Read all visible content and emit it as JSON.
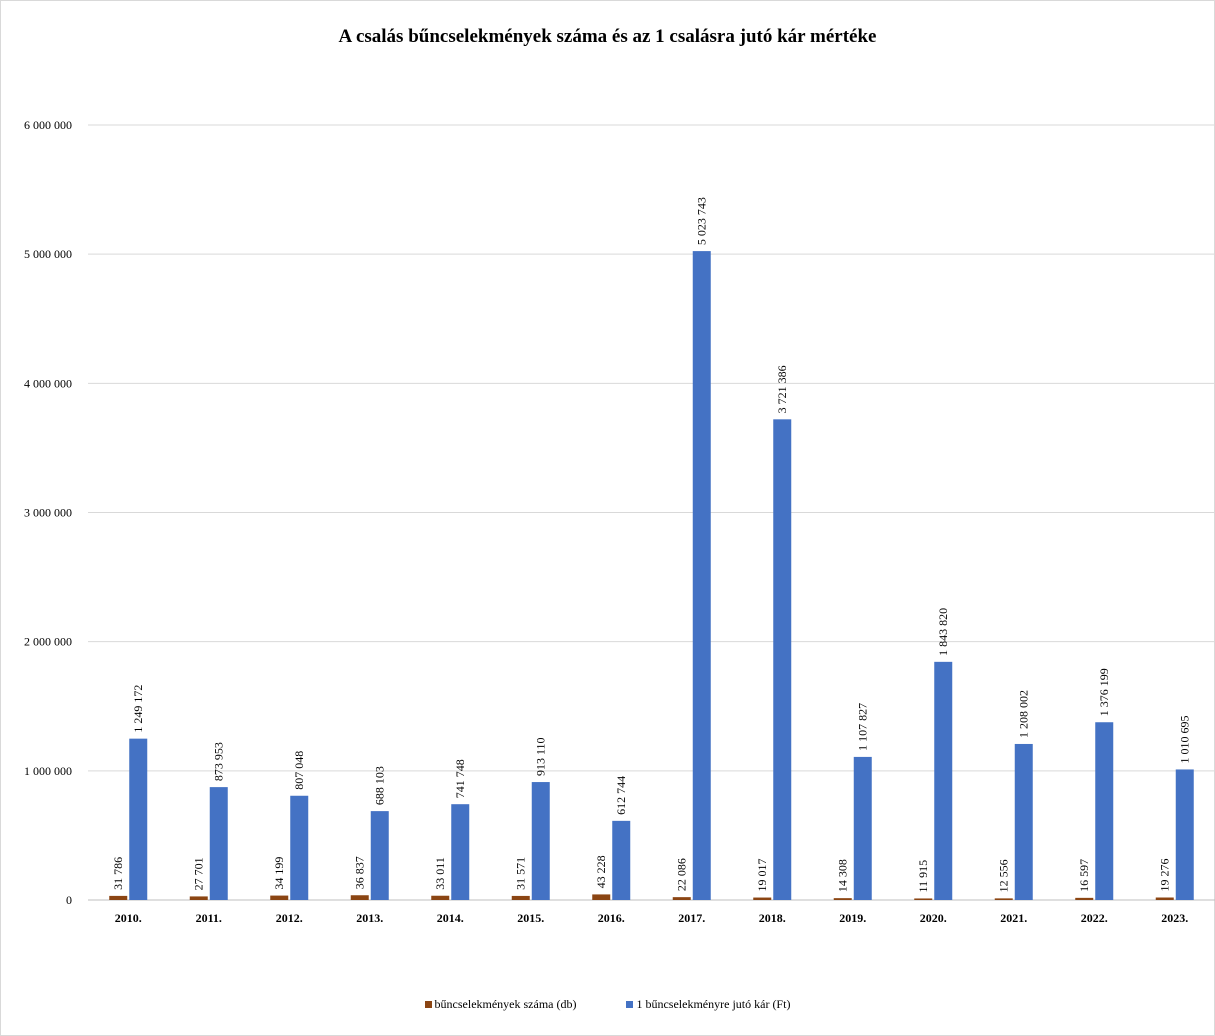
{
  "chart_data": {
    "type": "bar",
    "title": "A csalás bűncselekmények száma és az 1 csalásra jutó kár mértéke",
    "categories": [
      "2010.",
      "2011.",
      "2012.",
      "2013.",
      "2014.",
      "2015.",
      "2016.",
      "2017.",
      "2018.",
      "2019.",
      "2020.",
      "2021.",
      "2022.",
      "2023."
    ],
    "series": [
      {
        "name": "bűncselekmények száma (db)",
        "color": "#8B4513",
        "values": [
          31786,
          27701,
          34199,
          36837,
          33011,
          31571,
          43228,
          22086,
          19017,
          14308,
          11915,
          12556,
          16597,
          19276
        ],
        "labels": [
          "31 786",
          "27 701",
          "34 199",
          "36 837",
          "33 011",
          "31 571",
          "43 228",
          "22 086",
          "19 017",
          "14 308",
          "11 915",
          "12 556",
          "16 597",
          "19 276"
        ]
      },
      {
        "name": "1 bűncselekményre jutó kár (Ft)",
        "color": "#4472C4",
        "values": [
          1249172,
          873953,
          807048,
          688103,
          741748,
          913110,
          612744,
          5023743,
          3721386,
          1107827,
          1843820,
          1208002,
          1376199,
          1010695
        ],
        "labels": [
          "1 249 172",
          "873 953",
          "807 048",
          "688 103",
          "741 748",
          "913 110",
          "612 744",
          "5 023 743",
          "3 721 386",
          "1 107 827",
          "1 843 820",
          "1 208 002",
          "1 376 199",
          "1 010 695"
        ]
      }
    ],
    "ylim": [
      0,
      6000000
    ],
    "yticks": [
      0,
      1000000,
      2000000,
      3000000,
      4000000,
      5000000,
      6000000
    ],
    "ytick_labels": [
      "0",
      "1 000 000",
      "2 000 000",
      "3 000 000",
      "4 000 000",
      "5 000 000",
      "6 000 000"
    ],
    "xlabel": "",
    "ylabel": "",
    "grid": true,
    "legend_position": "bottom"
  }
}
